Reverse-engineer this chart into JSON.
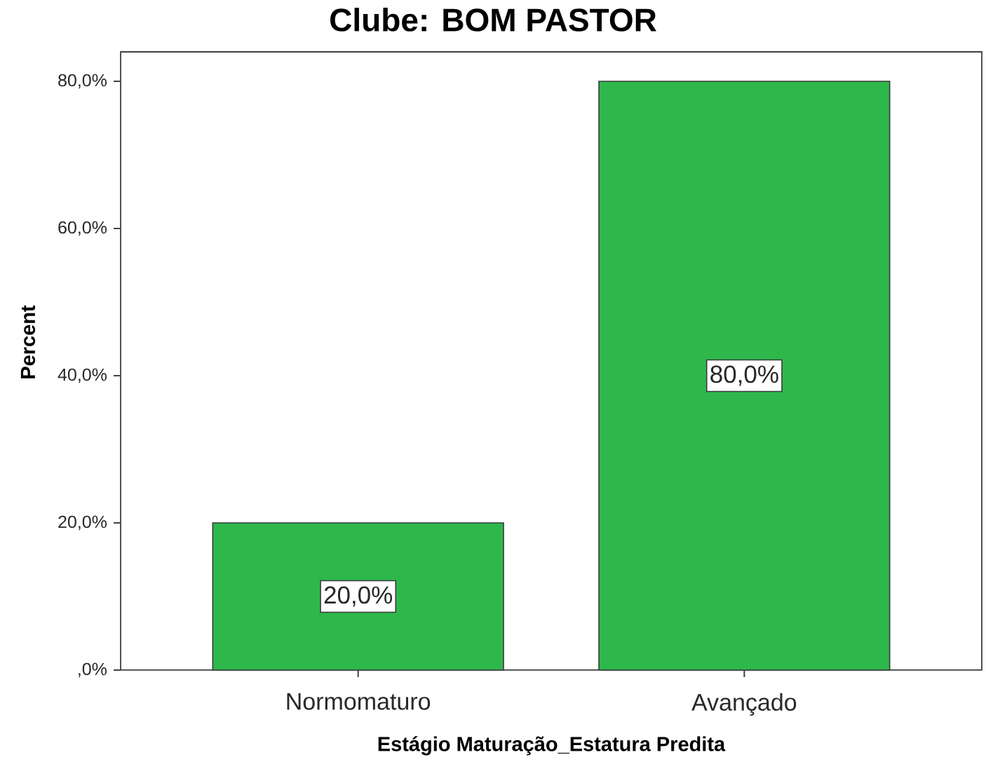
{
  "chart_data": {
    "type": "bar",
    "title": "Clube: BOM PASTOR",
    "xlabel": "Estágio Maturação_Estatura Predita",
    "ylabel": "Percent",
    "categories": [
      "Normomaturo",
      "Avançado"
    ],
    "values": [
      20,
      80
    ],
    "value_labels": [
      "20,0%",
      "80,0%"
    ],
    "color": "#2eb84c",
    "ylim": [
      0,
      84
    ],
    "yticks": [
      {
        "value": 0,
        "label": ",0%"
      },
      {
        "value": 20,
        "label": "20,0%"
      },
      {
        "value": 40,
        "label": "40,0%"
      },
      {
        "value": 60,
        "label": "60,0%"
      },
      {
        "value": 80,
        "label": "80,0%"
      }
    ]
  }
}
